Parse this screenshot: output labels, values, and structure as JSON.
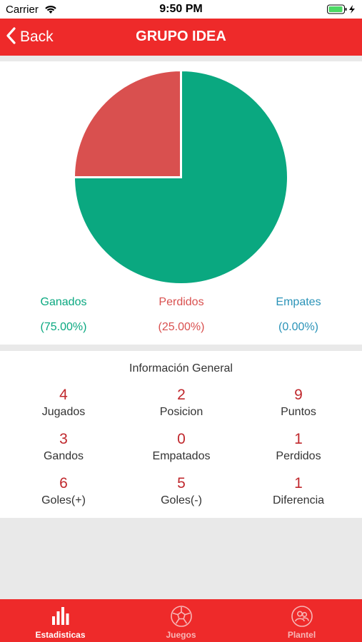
{
  "status_bar": {
    "carrier": "Carrier",
    "time": "9:50 PM"
  },
  "nav": {
    "back_label": "Back",
    "title": "GRUPO IDEA"
  },
  "colors": {
    "accent": "#ee2a2a",
    "won": "#0aa880",
    "lost": "#d9504f",
    "draw": "#2a93b8",
    "value": "#c0282d"
  },
  "chart_data": {
    "type": "pie",
    "categories": [
      "Ganados",
      "Perdidos",
      "Empates"
    ],
    "values": [
      75.0,
      25.0,
      0.0
    ],
    "labels": [
      "(75.00%)",
      "(25.00%)",
      "(0.00%)"
    ],
    "colors": [
      "#0aa880",
      "#d9504f",
      "#2a93b8"
    ]
  },
  "info": {
    "title": "Información General",
    "stats": [
      {
        "value": "4",
        "label": "Jugados"
      },
      {
        "value": "2",
        "label": "Posicion"
      },
      {
        "value": "9",
        "label": "Puntos"
      },
      {
        "value": "3",
        "label": "Gandos"
      },
      {
        "value": "0",
        "label": "Empatados"
      },
      {
        "value": "1",
        "label": "Perdidos"
      },
      {
        "value": "6",
        "label": "Goles(+)"
      },
      {
        "value": "5",
        "label": "Goles(-)"
      },
      {
        "value": "1",
        "label": "Diferencia"
      }
    ]
  },
  "tabs": [
    {
      "label": "Estadisticas",
      "icon": "bar-chart-icon",
      "active": true
    },
    {
      "label": "Juegos",
      "icon": "soccer-ball-icon",
      "active": false
    },
    {
      "label": "Plantel",
      "icon": "team-icon",
      "active": false
    }
  ]
}
